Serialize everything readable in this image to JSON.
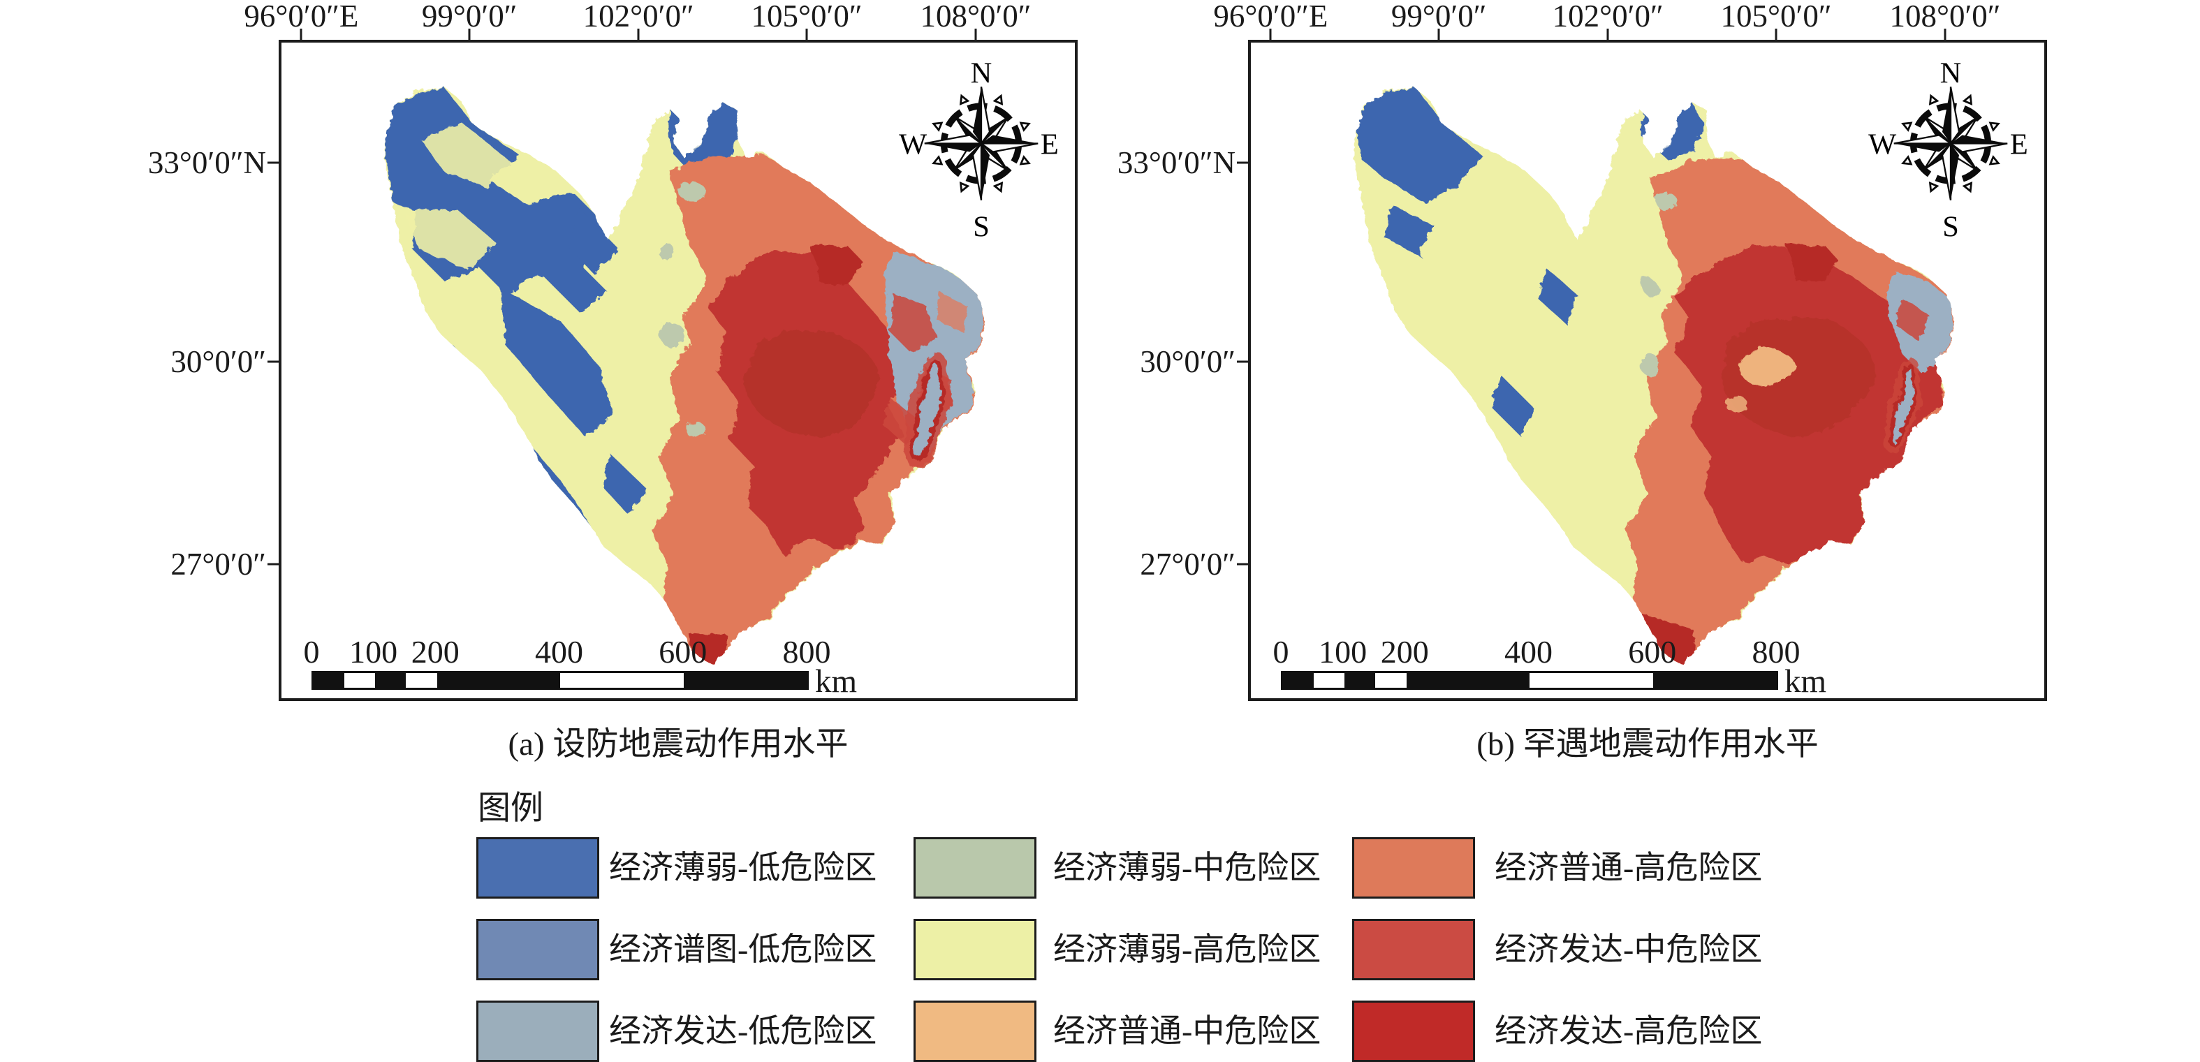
{
  "panels": [
    {
      "id": "a",
      "caption": "(a) 设防地震动作用水平"
    },
    {
      "id": "b",
      "caption": "(b) 罕遇地震动作用水平"
    }
  ],
  "axes": {
    "lon_labels": [
      "96°0′0″E",
      "99°0′0″",
      "102°0′0″",
      "105°0′0″",
      "108°0′0″"
    ],
    "lon_positions_pct": [
      2.5,
      23.7,
      45.0,
      66.2,
      87.5
    ],
    "lat_labels": [
      "33°0′0″N",
      "30°0′0″",
      "27°0′0″"
    ],
    "lat_positions_pct": [
      18.3,
      48.7,
      79.5
    ]
  },
  "compass": {
    "north": "N",
    "east": "E",
    "south": "S",
    "west": "W"
  },
  "scalebar": {
    "tick_labels": [
      "0",
      "100",
      "200",
      "400",
      "600",
      "800"
    ],
    "tick_km": [
      0,
      100,
      200,
      400,
      600,
      800
    ],
    "segment_breaks_km": [
      0,
      50,
      100,
      150,
      200,
      400,
      600,
      800
    ],
    "max_km": 800,
    "unit": "km"
  },
  "legend": {
    "title": "图例",
    "columns": [
      {
        "items": [
          {
            "label": "经济薄弱-低危险区",
            "color": "#4a6fb0"
          },
          {
            "label": "经济谱图-低危险区",
            "color": "#7089b4"
          },
          {
            "label": "经济发达-低危险区",
            "color": "#9baebb"
          }
        ]
      },
      {
        "items": [
          {
            "label": "经济薄弱-中危险区",
            "color": "#b9c8ab"
          },
          {
            "label": "经济薄弱-高危险区",
            "color": "#edf0a6"
          },
          {
            "label": "经济普通-中危险区",
            "color": "#f0ba82"
          }
        ]
      },
      {
        "items": [
          {
            "label": "经济普通-高危险区",
            "color": "#de7a5a"
          },
          {
            "label": "经济发达-中危险区",
            "color": "#cb4b43"
          },
          {
            "label": "经济发达-高危险区",
            "color": "#c02a28"
          }
        ]
      }
    ]
  },
  "map_palette": {
    "blue": "#3d66af",
    "pale_yellow": "#eef0a6",
    "salmon": "#e17a5a",
    "dark_red": "#c13530",
    "deep_red": "#b62b28",
    "red": "#cb463c",
    "gray_blue": "#9cb0c3",
    "sage": "#bdc9ad",
    "tan": "#f0ba82",
    "outline": "#1c1c1c"
  }
}
